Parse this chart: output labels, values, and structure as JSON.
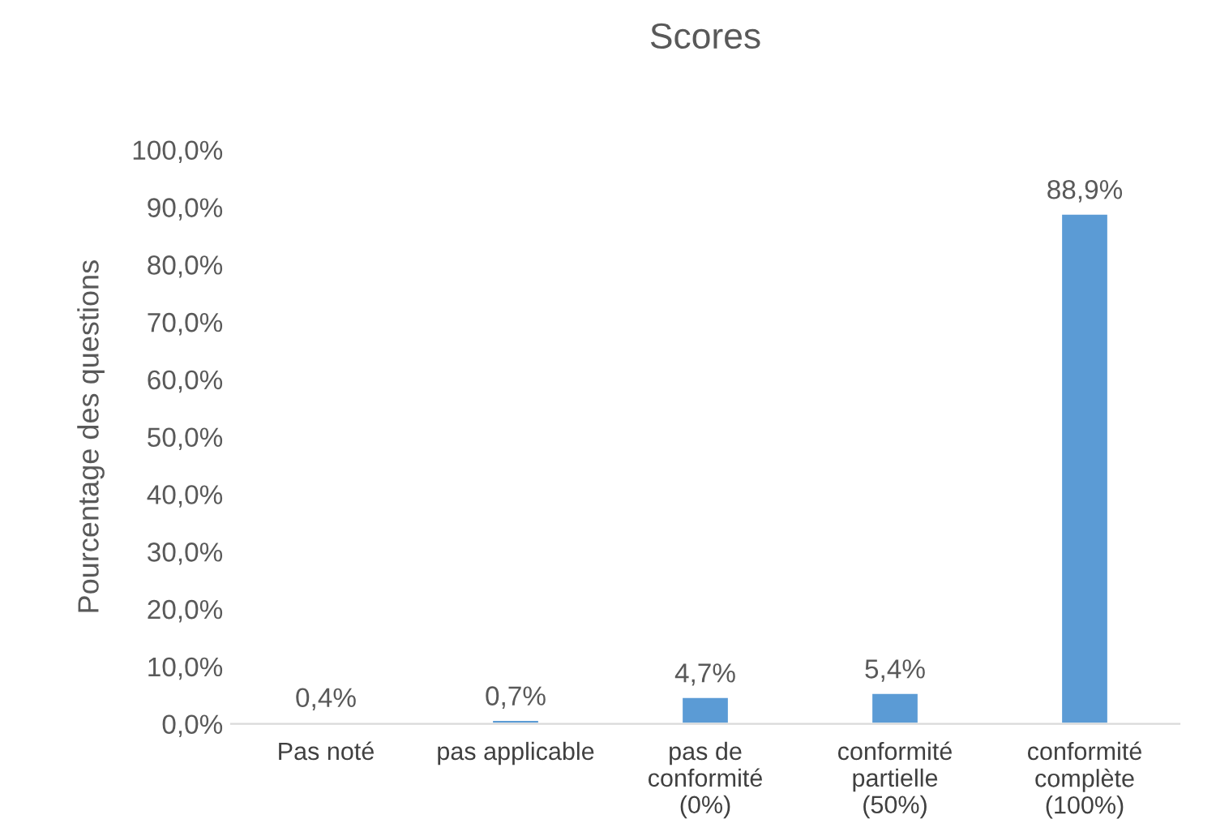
{
  "chart_data": {
    "type": "bar",
    "title": "Scores",
    "ylabel": "Pourcentage des questions",
    "categories": [
      "Pas noté",
      "pas applicable",
      "pas de\nconformité\n(0%)",
      "conformité\npartielle\n(50%)",
      "conformité\ncomplète\n(100%)"
    ],
    "values": [
      0.4,
      0.7,
      4.7,
      5.4,
      88.9
    ],
    "value_labels": [
      "0,4%",
      "0,7%",
      "4,7%",
      "5,4%",
      "88,9%"
    ],
    "color": "#5b9bd5",
    "ylim": [
      0,
      100
    ],
    "yticks": [
      {
        "value": 0,
        "label": "0,0%"
      },
      {
        "value": 10,
        "label": "10,0%"
      },
      {
        "value": 20,
        "label": "20,0%"
      },
      {
        "value": 30,
        "label": "30,0%"
      },
      {
        "value": 40,
        "label": "40,0%"
      },
      {
        "value": 50,
        "label": "50,0%"
      },
      {
        "value": 60,
        "label": "60,0%"
      },
      {
        "value": 70,
        "label": "70,0%"
      },
      {
        "value": 80,
        "label": "80,0%"
      },
      {
        "value": 90,
        "label": "90,0%"
      },
      {
        "value": 100,
        "label": "100,0%"
      }
    ],
    "grid": false,
    "legend": false
  }
}
